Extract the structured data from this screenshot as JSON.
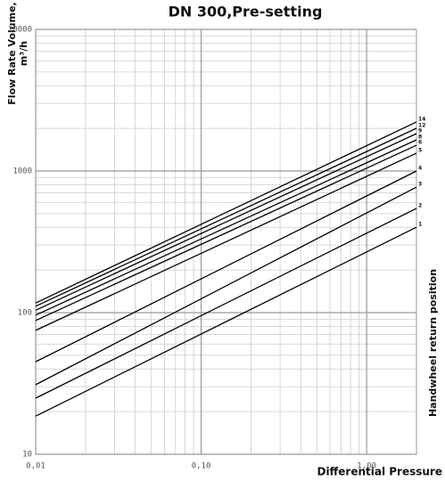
{
  "chart_data": {
    "type": "line",
    "title": "DN 300,Pre-setting",
    "ylabel": [
      "Flow Rate Volume,",
      "m³/h"
    ],
    "xlabel": "Differential Pressure",
    "right_label": "Handwheel return position",
    "xscale": "log",
    "yscale": "log",
    "grid": true,
    "xlim": [
      0.01,
      2
    ],
    "ylim": [
      10,
      10000
    ],
    "xticks": [
      {
        "value": 0.01,
        "label": "0,01"
      },
      {
        "value": 0.1,
        "label": "0,10"
      },
      {
        "value": 1,
        "label": "1,00"
      }
    ],
    "yticks": [
      10,
      100,
      1000,
      10000
    ],
    "x": [
      0.01,
      2
    ],
    "series": [
      {
        "name": "1",
        "color": "#000000",
        "values": [
          18.6,
          401
        ]
      },
      {
        "name": "2",
        "color": "#000000",
        "values": [
          24.9,
          545
        ]
      },
      {
        "name": "3",
        "color": "#000000",
        "values": [
          31,
          770
        ]
      },
      {
        "name": "4",
        "color": "#000000",
        "values": [
          45,
          1000
        ]
      },
      {
        "name": "5",
        "color": "#000000",
        "values": [
          75,
          1337
        ]
      },
      {
        "name": "6",
        "color": "#000000",
        "values": [
          88,
          1520
        ]
      },
      {
        "name": "8",
        "color": "#000000",
        "values": [
          96,
          1660
        ]
      },
      {
        "name": "9",
        "color": "#000000",
        "values": [
          104,
          1837
        ]
      },
      {
        "name": "12",
        "color": "#000000",
        "values": [
          111,
          2004
        ]
      },
      {
        "name": "14",
        "color": "#000000",
        "values": [
          117,
          2220
        ]
      }
    ]
  }
}
